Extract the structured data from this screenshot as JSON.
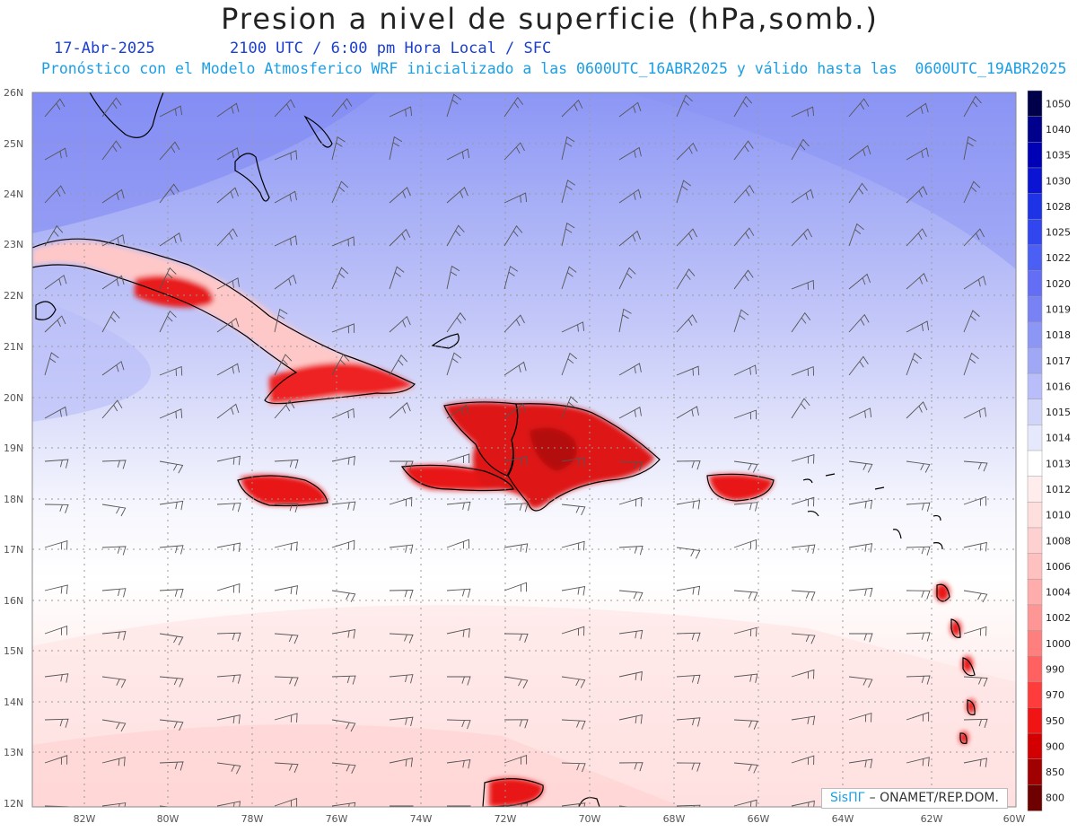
{
  "header": {
    "title": "Presion a nivel de superficie (hPa,somb.)",
    "date": "17-Abr-2025",
    "time": "2100 UTC / 6:00 pm Hora Local / SFC",
    "forecast_info": "Pronóstico con el Modelo Atmosferico WRF inicializado a las 0600UTC_16ABR2025 y válido hasta las  0600UTC_19ABR2025"
  },
  "axes": {
    "lat_labels": [
      "26N",
      "25N",
      "24N",
      "23N",
      "22N",
      "21N",
      "20N",
      "19N",
      "18N",
      "17N",
      "16N",
      "15N",
      "14N",
      "13N",
      "12N"
    ],
    "lon_labels": [
      "82W",
      "80W",
      "78W",
      "76W",
      "74W",
      "72W",
      "70W",
      "68W",
      "66W",
      "64W",
      "62W",
      "60W"
    ]
  },
  "colorbar": {
    "levels": [
      "1050",
      "1040",
      "1035",
      "1030",
      "1028",
      "1025",
      "1022",
      "1020",
      "1019",
      "1018",
      "1017",
      "1016",
      "1015",
      "1014",
      "1013",
      "1012",
      "1010",
      "1008",
      "1006",
      "1004",
      "1002",
      "1000",
      "990",
      "970",
      "950",
      "900",
      "850",
      "800"
    ],
    "colors": [
      "#00004a",
      "#00008c",
      "#0000b4",
      "#0a14d2",
      "#1e32e6",
      "#3246f0",
      "#4b5ff5",
      "#646ef5",
      "#7882f5",
      "#8c96f5",
      "#a0a8f5",
      "#b9befa",
      "#d2d5fa",
      "#e6e8fc",
      "#ffffff",
      "#ffecec",
      "#ffdede",
      "#ffd0d0",
      "#ffc0c0",
      "#ffacac",
      "#ff9696",
      "#ff7e7e",
      "#ff6060",
      "#ff3c3c",
      "#f01414",
      "#d20000",
      "#a00000",
      "#6e0000"
    ]
  },
  "credit": {
    "brand": "SisПГ",
    "text": "– ONAMET/REP.DOM."
  }
}
